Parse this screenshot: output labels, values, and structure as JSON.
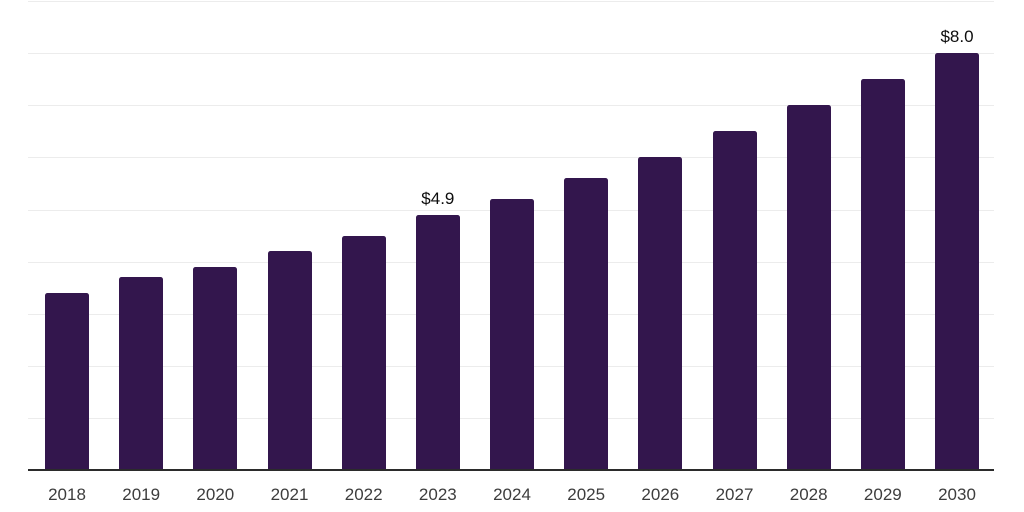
{
  "chart_data": {
    "type": "bar",
    "categories": [
      "2018",
      "2019",
      "2020",
      "2021",
      "2022",
      "2023",
      "2024",
      "2025",
      "2026",
      "2027",
      "2028",
      "2029",
      "2030"
    ],
    "values": [
      3.4,
      3.7,
      3.9,
      4.2,
      4.5,
      4.9,
      5.2,
      5.6,
      6.0,
      6.5,
      7.0,
      7.5,
      8.0
    ],
    "bar_labels": [
      "",
      "",
      "",
      "",
      "",
      "$4.9",
      "",
      "",
      "",
      "",
      "",
      "",
      "$8.0"
    ],
    "title": "",
    "xlabel": "",
    "ylabel": "",
    "ylim": [
      0,
      9
    ],
    "gridline_step": 1,
    "grid": "horizontal",
    "legend_position": "none",
    "y_tick_labels_visible": false,
    "colors": {
      "bar": "#33164d",
      "grid": "#ececec",
      "axis": "#2b2b2b",
      "tick_label": "#3d3d3d",
      "value_label": "#0d0d0d",
      "background": "#ffffff"
    }
  }
}
